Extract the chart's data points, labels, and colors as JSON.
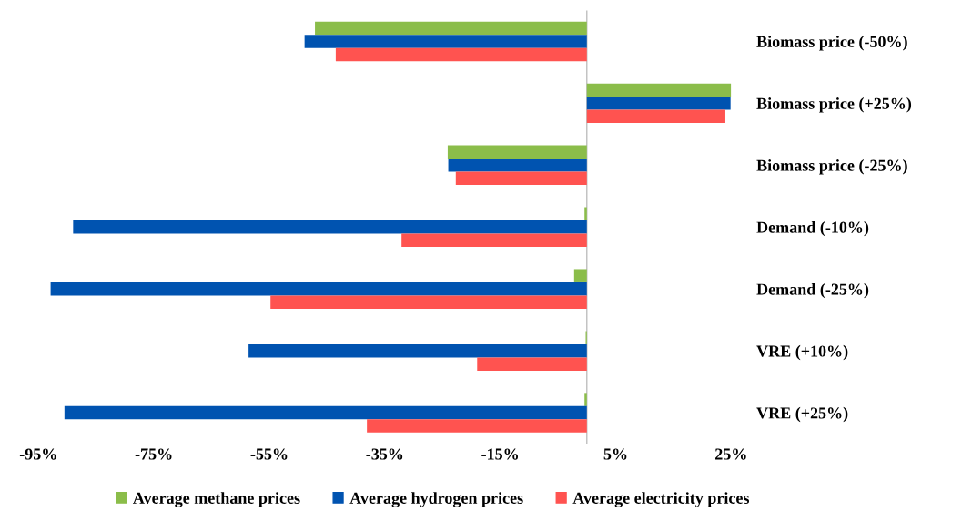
{
  "chart_data": {
    "type": "bar",
    "orientation": "horizontal",
    "categories": [
      "Biomass price (-50%)",
      "Biomass price (+25%)",
      "Biomass price (-25%)",
      "Demand (-10%)",
      "Demand (-25%)",
      "VRE (+10%)",
      "VRE (+25%)"
    ],
    "series": [
      {
        "name": "Average methane prices",
        "color": "#8bbd4a",
        "values": [
          -47.1,
          25.0,
          -24.1,
          -0.4,
          -2.2,
          -0.2,
          -0.4
        ]
      },
      {
        "name": "Average hydrogen prices",
        "color": "#0053b0",
        "values": [
          -48.9,
          24.9,
          -24.0,
          -89.0,
          -92.9,
          -58.6,
          -90.5
        ]
      },
      {
        "name": "Average electricity prices",
        "color": "#ff5350",
        "values": [
          -43.5,
          24.0,
          -22.7,
          -32.1,
          -54.8,
          -19.0,
          -38.1
        ]
      }
    ],
    "xlim": [
      -95,
      25
    ],
    "xticks": [
      {
        "value": -95,
        "label": "-95%"
      },
      {
        "value": -75,
        "label": "-75%"
      },
      {
        "value": -55,
        "label": "-55%"
      },
      {
        "value": -35,
        "label": "-35%"
      },
      {
        "value": -15,
        "label": "-15%"
      },
      {
        "value": 5,
        "label": "5%"
      },
      {
        "value": 25,
        "label": "25%"
      }
    ],
    "grid": false,
    "legend": "bottom"
  }
}
